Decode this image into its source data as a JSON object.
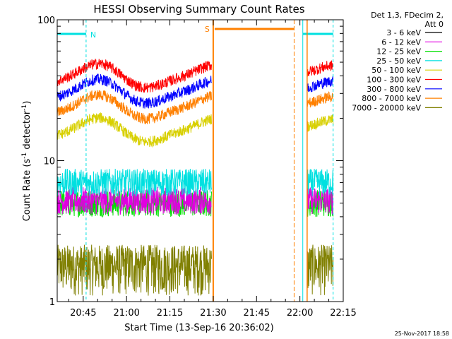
{
  "chart_data": {
    "type": "line",
    "title": "HESSI Observing Summary Count Rates",
    "xlabel": "Start Time (13-Sep-16 20:36:02)",
    "ylabel_main": "Count Rate (s",
    "ylabel_sup1": "-1",
    "ylabel_mid": " detector",
    "ylabel_sup2": "-1",
    "ylabel_end": ")",
    "y_scale": "log",
    "ylim": [
      1,
      100
    ],
    "xlim_minutes": [
      0,
      99
    ],
    "x_ticks": [
      {
        "label": "20:45",
        "t": 9
      },
      {
        "label": "21:00",
        "t": 24
      },
      {
        "label": "21:15",
        "t": 39
      },
      {
        "label": "21:30",
        "t": 54
      },
      {
        "label": "21:45",
        "t": 69
      },
      {
        "label": "22:00",
        "t": 84
      },
      {
        "label": "22:15",
        "t": 99
      }
    ],
    "y_ticks": [
      {
        "label": "1",
        "v": 1
      },
      {
        "label": "10",
        "v": 10
      },
      {
        "label": "100",
        "v": 100
      }
    ],
    "legend_header": [
      "Det 1,3, FDecim 2,",
      "Att 0"
    ],
    "legend_position": "right",
    "series": [
      {
        "name": "3 - 6 keV",
        "color": "#000000",
        "level": 0
      },
      {
        "name": "6 - 12 keV",
        "color": "#e000e0",
        "level": 5.2
      },
      {
        "name": "12 - 25 keV",
        "color": "#00e000",
        "level": 5.0
      },
      {
        "name": "25 - 50 keV",
        "color": "#00e0e0",
        "level": 7.0
      },
      {
        "name": "50 - 100 keV",
        "color": "#d8d000",
        "level": 16.5
      },
      {
        "name": "100 - 300 keV",
        "color": "#ff0000",
        "level": 40
      },
      {
        "name": "300 - 800 keV",
        "color": "#0000ff",
        "level": 31
      },
      {
        "name": "800 - 7000 keV",
        "color": "#ff8000",
        "level": 24
      },
      {
        "name": "7000 - 20000 keV",
        "color": "#808000",
        "level": 1.6
      }
    ],
    "segments_minutes": [
      [
        0,
        53.5
      ],
      [
        86.5,
        95.5
      ]
    ],
    "night_flags": [
      {
        "label": "N",
        "t_start": 0,
        "t_end": 10,
        "color": "#00e0e0"
      },
      {
        "label": "",
        "t_start": 85,
        "t_end": 95.5,
        "color": "#00e0e0"
      }
    ],
    "saa_flags": [
      {
        "label": "S",
        "t_start": 54,
        "t_end": 82,
        "color": "#ff8000"
      }
    ],
    "timestamp": "25-Nov-2017 18:58"
  }
}
